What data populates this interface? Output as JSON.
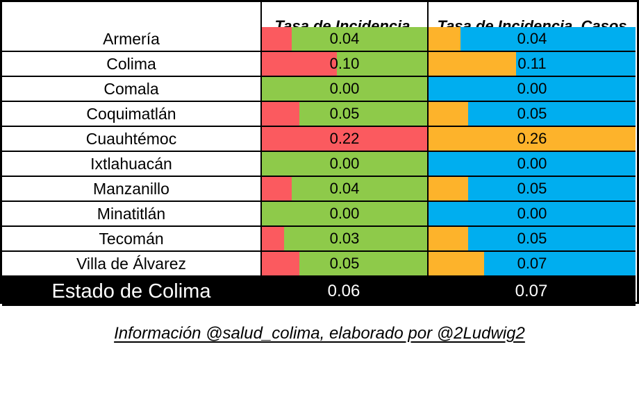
{
  "table": {
    "header": {
      "col1": "Estado de Colima",
      "col2": "Tasa de Incidencia, Casos Activos",
      "col3": "Tasa de Incidencia, Casos Activos + Sospechosos"
    },
    "rows": [
      {
        "name": "Armería",
        "activos": 0.04,
        "sospechosos": 0.04
      },
      {
        "name": "Colima",
        "activos": 0.1,
        "sospechosos": 0.11
      },
      {
        "name": "Comala",
        "activos": 0.0,
        "sospechosos": 0.0
      },
      {
        "name": "Coquimatlán",
        "activos": 0.05,
        "sospechosos": 0.05
      },
      {
        "name": "Cuauhtémoc",
        "activos": 0.22,
        "sospechosos": 0.26
      },
      {
        "name": "Ixtlahuacán",
        "activos": 0.0,
        "sospechosos": 0.0
      },
      {
        "name": "Manzanillo",
        "activos": 0.04,
        "sospechosos": 0.05
      },
      {
        "name": "Minatitlán",
        "activos": 0.0,
        "sospechosos": 0.0
      },
      {
        "name": "Tecomán",
        "activos": 0.03,
        "sospechosos": 0.05
      },
      {
        "name": "Villa de Álvarez",
        "activos": 0.05,
        "sospechosos": 0.07
      }
    ],
    "max_activos": 0.22,
    "max_sospechosos": 0.26,
    "footer": {
      "name": "Estado de Colima",
      "activos": "0.06",
      "sospechosos": "0.07"
    }
  },
  "caption": "Información @salud_colima, elaborado por @2Ludwig2",
  "colors": {
    "bar_activos": "#FB5A5F",
    "bg_activos": "#8ECA4A",
    "bar_sospechosos": "#FDB32B",
    "bg_sospechosos": "#00AEEF",
    "footer_bg": "#000000",
    "footer_text": "#FFFFFF",
    "border": "#000000"
  },
  "chart_data": {
    "type": "table",
    "title": "Estado de Colima",
    "categories": [
      "Armería",
      "Colima",
      "Comala",
      "Coquimatlán",
      "Cuauhtémoc",
      "Ixtlahuacán",
      "Manzanillo",
      "Minatitlán",
      "Tecomán",
      "Villa de Álvarez"
    ],
    "series": [
      {
        "name": "Tasa de Incidencia, Casos Activos",
        "values": [
          0.04,
          0.1,
          0.0,
          0.05,
          0.22,
          0.0,
          0.04,
          0.0,
          0.03,
          0.05
        ],
        "bar_scale_max": 0.22
      },
      {
        "name": "Tasa de Incidencia, Casos Activos + Sospechosos",
        "values": [
          0.04,
          0.11,
          0.0,
          0.05,
          0.26,
          0.0,
          0.05,
          0.0,
          0.05,
          0.07
        ],
        "bar_scale_max": 0.26
      }
    ],
    "totals": {
      "label": "Estado de Colima",
      "values": [
        0.06,
        0.07
      ]
    },
    "annotations": [
      "Información @salud_colima, elaborado por @2Ludwig2"
    ],
    "layout": "embedded data bars, values labeled to 2 decimals, totals row on black band"
  }
}
